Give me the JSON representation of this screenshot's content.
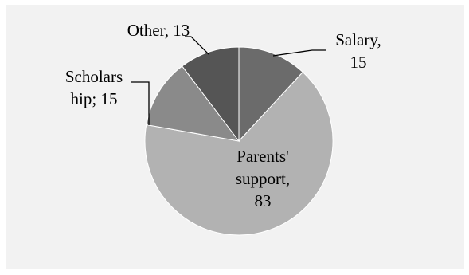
{
  "chart_data": {
    "type": "pie",
    "slices": [
      {
        "label_lines": [
          "Salary,",
          "15"
        ],
        "value": 15,
        "color": "#6b6b6b"
      },
      {
        "label_lines": [
          "Parents'",
          "support,",
          "83"
        ],
        "value": 83,
        "color": "#b2b2b2"
      },
      {
        "label_lines": [
          "Scholars",
          "hip; 15"
        ],
        "value": 15,
        "color": "#8a8a8a"
      },
      {
        "label_lines": [
          "Other, 13"
        ],
        "value": 13,
        "color": "#555555"
      }
    ],
    "start_angle_deg": 0,
    "direction": "clockwise",
    "legend": "none",
    "background": "#f2f2f2"
  }
}
